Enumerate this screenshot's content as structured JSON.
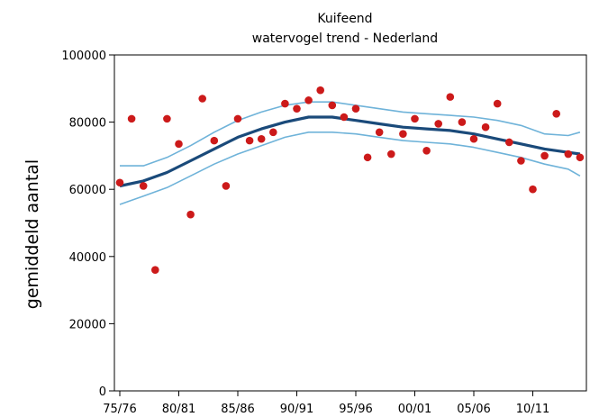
{
  "chart_data": {
    "type": "scatter",
    "title": "Kuifeend",
    "subtitle": "watervogel trend - Nederland",
    "xlabel": "",
    "ylabel": "gemiddeld aantal",
    "ylim": [
      0,
      100000
    ],
    "yticks": [
      0,
      20000,
      40000,
      60000,
      80000,
      100000
    ],
    "yticklabels": [
      "0",
      "20000",
      "40000",
      "60000",
      "80000",
      "100000"
    ],
    "xticklabels": [
      "75/76",
      "80/81",
      "85/86",
      "90/91",
      "95/96",
      "00/01",
      "05/06",
      "10/11"
    ],
    "grid": false,
    "colors": {
      "points": "#cc1a1a",
      "trend": "#1a4a7a",
      "band": "#6fb3d9"
    },
    "points": {
      "x": [
        "75/76",
        "76/77",
        "77/78",
        "78/79",
        "79/80",
        "80/81",
        "81/82",
        "82/83",
        "83/84",
        "84/85",
        "85/86",
        "86/87",
        "87/88",
        "88/89",
        "89/90",
        "90/91",
        "91/92",
        "92/93",
        "93/94",
        "94/95",
        "95/96",
        "96/97",
        "97/98",
        "98/99",
        "99/00",
        "00/01",
        "01/02",
        "02/03",
        "03/04",
        "04/05",
        "05/06",
        "06/07",
        "07/08",
        "08/09",
        "09/10",
        "10/11",
        "11/12",
        "12/13",
        "13/14",
        "14/15"
      ],
      "y": [
        62000,
        81000,
        61000,
        36000,
        81000,
        73500,
        52500,
        87000,
        74500,
        61000,
        81000,
        74500,
        75000,
        77000,
        85500,
        84000,
        86500,
        89500,
        85000,
        81500,
        84000,
        69500,
        77000,
        70500,
        76500,
        81000,
        71500,
        79500,
        87500,
        80000,
        75000,
        78500,
        85500,
        74000,
        68500,
        60000,
        70000,
        82500,
        70500,
        69500
      ]
    },
    "trend": {
      "x": [
        "75/76",
        "77/78",
        "79/80",
        "81/82",
        "83/84",
        "85/86",
        "87/88",
        "89/90",
        "91/92",
        "93/94",
        "95/96",
        "97/98",
        "99/00",
        "01/02",
        "03/04",
        "05/06",
        "07/08",
        "09/10",
        "11/12",
        "13/14",
        "14/15"
      ],
      "mid": [
        61000,
        62500,
        65000,
        68500,
        72000,
        75500,
        78000,
        80000,
        81500,
        81500,
        80500,
        79500,
        78500,
        78000,
        77500,
        76500,
        75000,
        73500,
        72000,
        71000,
        70500
      ],
      "upper": [
        67000,
        67000,
        69500,
        73000,
        77000,
        80500,
        83000,
        85000,
        86000,
        86000,
        85000,
        84000,
        83000,
        82500,
        82000,
        81500,
        80500,
        79000,
        76500,
        76000,
        77000
      ],
      "lower": [
        55500,
        58000,
        60500,
        64000,
        67500,
        70500,
        73000,
        75500,
        77000,
        77000,
        76500,
        75500,
        74500,
        74000,
        73500,
        72500,
        71000,
        69500,
        67500,
        66000,
        64000
      ]
    }
  }
}
